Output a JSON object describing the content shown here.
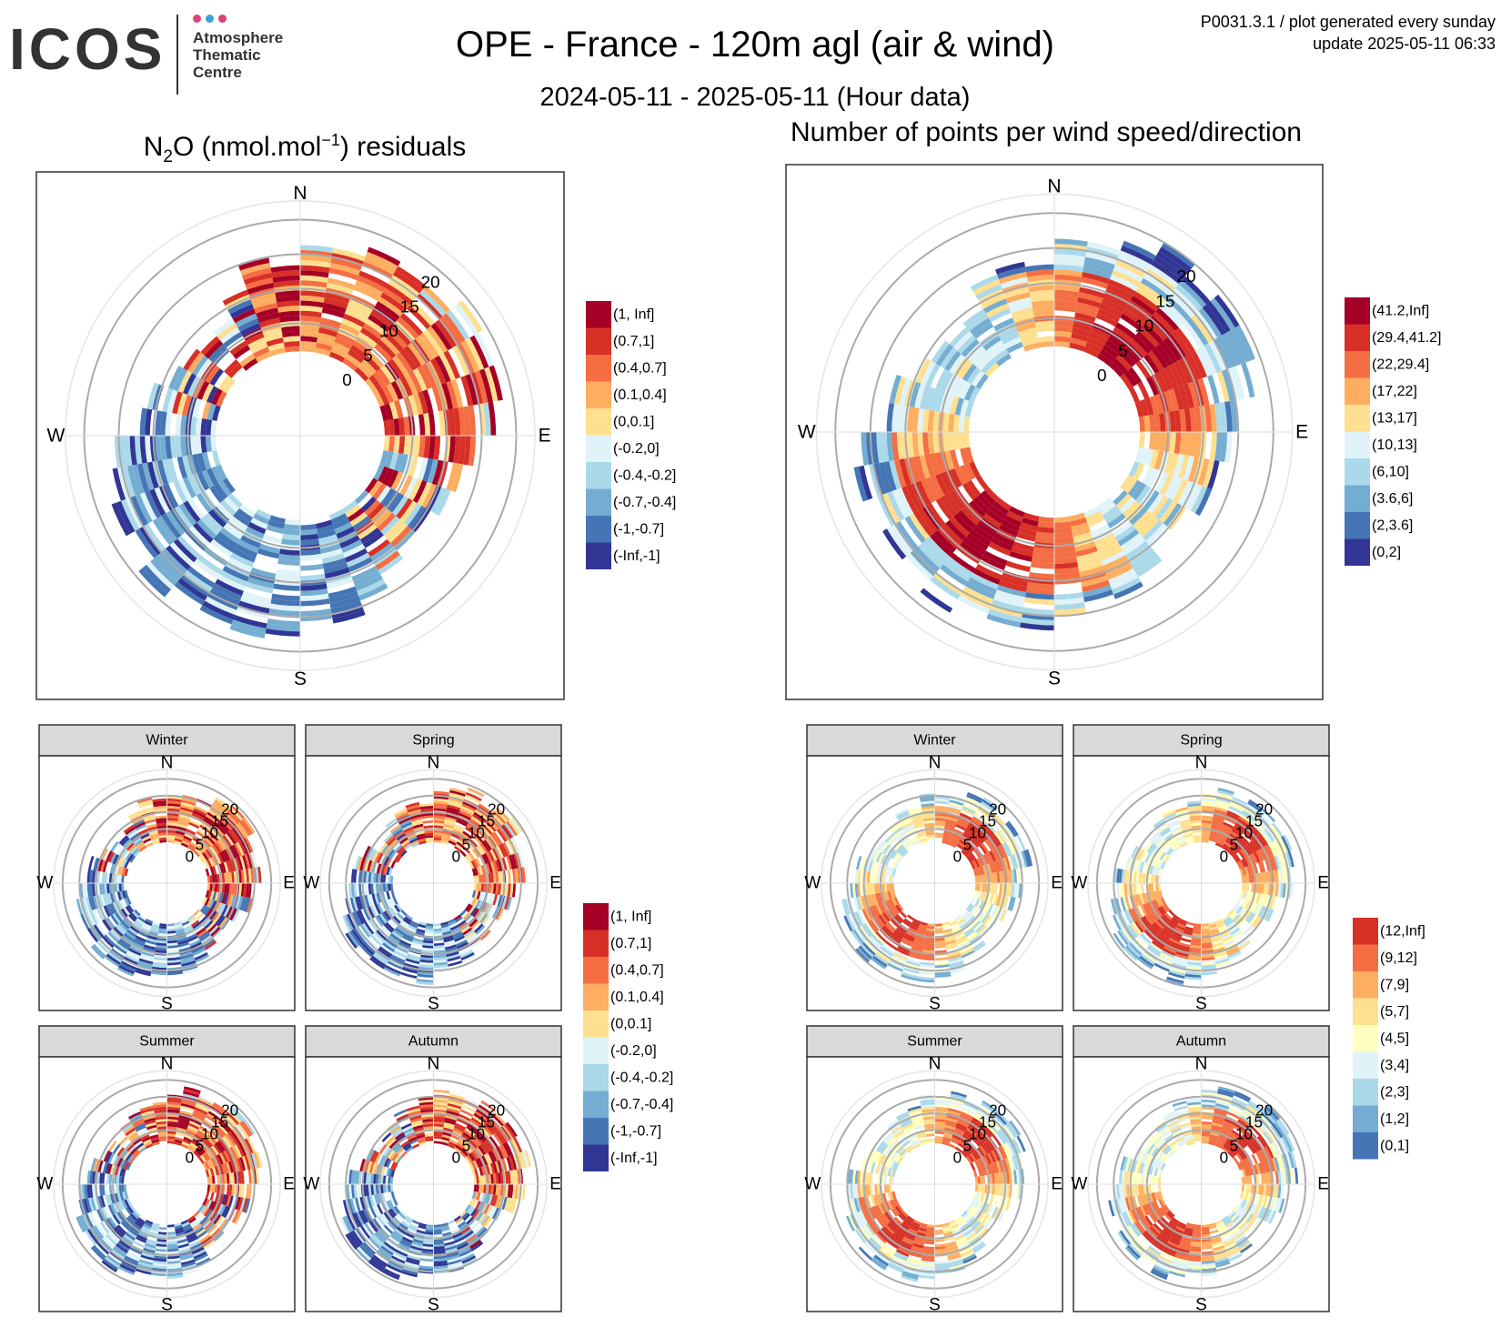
{
  "header": {
    "logo_word": "ICOS",
    "logo_lines": [
      "Atmosphere",
      "Thematic",
      "Centre"
    ],
    "logo_dot_colors": [
      "#e0407a",
      "#3aa0d8",
      "#e0407a"
    ],
    "title": "OPE - France - 120m agl (air & wind)",
    "subtitle": "2024-05-11 - 2025-05-11 (Hour data)",
    "meta_line1": "P0031.3.1 / plot generated every sunday",
    "meta_line2": "update  2025-05-11 06:33"
  },
  "left_title_parts": {
    "a": "N",
    "sub": "2",
    "b": "O (nmol.mol",
    "sup": "−1",
    "c": ") residuals"
  },
  "right_title": "Number of points per wind speed/direction",
  "compass": [
    "N",
    "E",
    "S",
    "W"
  ],
  "seasons": [
    "Winter",
    "Spring",
    "Summer",
    "Autumn"
  ],
  "chart_data": [
    {
      "id": "residuals_main",
      "type": "polar-heatmap",
      "title": "N2O (nmol.mol-1) residuals",
      "radial_ticks": [
        0,
        5,
        10,
        15,
        20
      ],
      "legend": [
        "(1, Inf]",
        "(0.7,1]",
        "(0.4,0.7]",
        "(0.1,0.4]",
        "(0,0.1]",
        "(-0.2,0]",
        "(-0.4,-0.2]",
        "(-0.7,-0.4]",
        "(-1,-0.7]",
        "(-Inf,-1]"
      ],
      "colors": [
        "#a50026",
        "#d73027",
        "#f46d43",
        "#fdae61",
        "#fee090",
        "#e0f3f8",
        "#abd9e9",
        "#74add1",
        "#4575b4",
        "#313695"
      ],
      "dominant_sectors": [
        "NE (high residuals)",
        "SW (low residuals)"
      ]
    },
    {
      "id": "counts_main",
      "type": "polar-heatmap",
      "title": "Number of points per wind speed/direction",
      "radial_ticks": [
        0,
        5,
        10,
        15,
        20
      ],
      "legend": [
        "(41.2,Inf]",
        "(29.4,41.2]",
        "(22,29.4]",
        "(17,22]",
        "(13,17]",
        "(10,13]",
        "(6,10]",
        "(3.6,6]",
        "(2,3.6]",
        "(0,2]"
      ],
      "colors": [
        "#a50026",
        "#d73027",
        "#f46d43",
        "#fdae61",
        "#fee090",
        "#e0f3f8",
        "#abd9e9",
        "#74add1",
        "#4575b4",
        "#313695"
      ]
    },
    {
      "id": "residuals_seasonal",
      "type": "polar-heatmap",
      "facets": [
        "Winter",
        "Spring",
        "Summer",
        "Autumn"
      ],
      "radial_ticks": [
        0,
        5,
        10,
        15,
        20
      ],
      "legend": [
        "(1, Inf]",
        "(0.7,1]",
        "(0.4,0.7]",
        "(0.1,0.4]",
        "(0,0.1]",
        "(-0.2,0]",
        "(-0.4,-0.2]",
        "(-0.7,-0.4]",
        "(-1,-0.7]",
        "(-Inf,-1]"
      ],
      "colors": [
        "#a50026",
        "#d73027",
        "#f46d43",
        "#fdae61",
        "#fee090",
        "#e0f3f8",
        "#abd9e9",
        "#74add1",
        "#4575b4",
        "#313695"
      ]
    },
    {
      "id": "counts_seasonal",
      "type": "polar-heatmap",
      "facets": [
        "Winter",
        "Spring",
        "Summer",
        "Autumn"
      ],
      "radial_ticks": [
        0,
        5,
        10,
        15,
        20
      ],
      "legend": [
        "(12,Inf]",
        "(9,12]",
        "(7,9]",
        "(5,7]",
        "(4,5]",
        "(3,4]",
        "(2,3]",
        "(1,2]",
        "(0,1]"
      ],
      "colors": [
        "#d73027",
        "#f46d43",
        "#fdae61",
        "#fee090",
        "#ffffbf",
        "#e0f3f8",
        "#abd9e9",
        "#74add1",
        "#4575b4"
      ]
    }
  ]
}
